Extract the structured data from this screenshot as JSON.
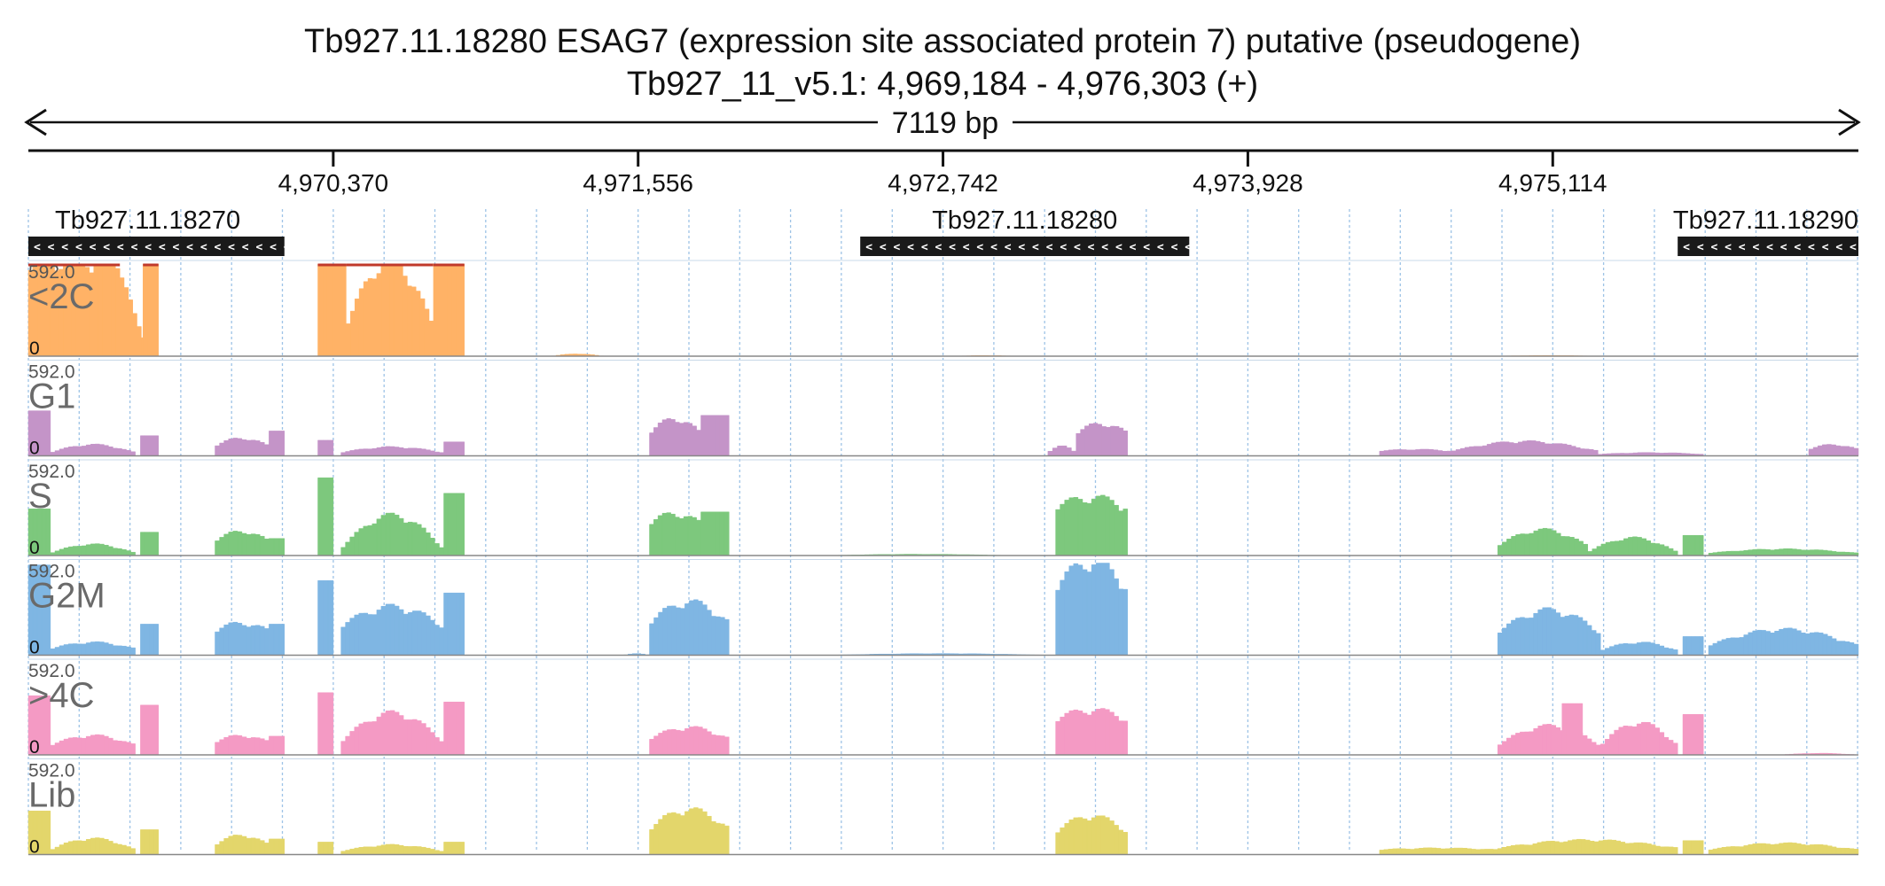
{
  "header": {
    "title": "Tb927.11.18280  ESAG7 (expression site associated protein 7)  putative (pseudogene)",
    "location": "Tb927_11_v5.1: 4,969,184 - 4,976,303 (+)",
    "span": "7119 bp"
  },
  "chart_data": {
    "type": "area",
    "x_range": [
      4969184,
      4976303
    ],
    "ticks": [
      {
        "pos": 4970370,
        "label": "4,970,370"
      },
      {
        "pos": 4971556,
        "label": "4,971,556"
      },
      {
        "pos": 4972742,
        "label": "4,972,742"
      },
      {
        "pos": 4973928,
        "label": "4,973,928"
      },
      {
        "pos": 4975114,
        "label": "4,975,114"
      }
    ],
    "genes": [
      {
        "name": "Tb927.11.18270",
        "start": 4969184,
        "end": 4970180,
        "strand": "-"
      },
      {
        "name": "Tb927.11.18280",
        "start": 4972420,
        "end": 4973700,
        "strand": "-"
      },
      {
        "name": "Tb927.11.18290",
        "start": 4975600,
        "end": 4976303,
        "strand": "-"
      }
    ],
    "grid": "dotted vertical every ~200 bp",
    "tracks": [
      {
        "name": "<2C",
        "color": "#ffb266",
        "max": 592.0,
        "min": 0,
        "max_label": "592.0",
        "min_label": "0",
        "clipped_color": "#c0392b",
        "segments": [
          {
            "start": 4969184,
            "end": 4969540,
            "shape": "hump",
            "base": 560,
            "peak": 592,
            "edge": 592
          },
          {
            "start": 4969540,
            "end": 4969690,
            "shape": "dip",
            "base": 20,
            "peak": 440,
            "edge": 560
          },
          {
            "start": 4969630,
            "end": 4969690,
            "shape": "flat",
            "base": 592,
            "peak": 592
          },
          {
            "start": 4970310,
            "end": 4970420,
            "shape": "flat",
            "base": 592,
            "peak": 592
          },
          {
            "start": 4970420,
            "end": 4970760,
            "shape": "hump",
            "base": 180,
            "peak": 592,
            "edge": 100
          },
          {
            "start": 4970760,
            "end": 4970880,
            "shape": "flat",
            "base": 592,
            "peak": 592
          },
          {
            "start": 4971220,
            "end": 4971420,
            "shape": "hump",
            "base": 0,
            "peak": 14
          },
          {
            "start": 4972800,
            "end": 4973020,
            "shape": "hump",
            "base": 0,
            "peak": 4
          },
          {
            "start": 4974900,
            "end": 4975300,
            "shape": "hump",
            "base": 0,
            "peak": 4
          }
        ]
      },
      {
        "name": "G1",
        "color": "#c494c8",
        "max": 592.0,
        "min": 0,
        "max_label": "592.0",
        "min_label": "0",
        "segments": [
          {
            "start": 4969184,
            "end": 4969270,
            "shape": "flat",
            "base": 290,
            "peak": 290
          },
          {
            "start": 4969270,
            "end": 4969600,
            "shape": "hump",
            "base": 20,
            "peak": 70
          },
          {
            "start": 4969620,
            "end": 4969690,
            "shape": "flat",
            "base": 130,
            "peak": 130
          },
          {
            "start": 4969910,
            "end": 4970120,
            "shape": "hump",
            "base": 60,
            "peak": 110
          },
          {
            "start": 4970120,
            "end": 4970180,
            "shape": "flat",
            "base": 160,
            "peak": 160
          },
          {
            "start": 4970310,
            "end": 4970370,
            "shape": "flat",
            "base": 100,
            "peak": 100
          },
          {
            "start": 4970400,
            "end": 4970800,
            "shape": "hump",
            "base": 20,
            "peak": 55
          },
          {
            "start": 4970800,
            "end": 4970880,
            "shape": "flat",
            "base": 90,
            "peak": 90
          },
          {
            "start": 4971600,
            "end": 4971800,
            "shape": "hump",
            "base": 140,
            "peak": 230
          },
          {
            "start": 4971800,
            "end": 4971910,
            "shape": "flat",
            "base": 260,
            "peak": 260
          },
          {
            "start": 4973150,
            "end": 4973260,
            "shape": "hump",
            "base": 20,
            "peak": 60
          },
          {
            "start": 4973260,
            "end": 4973460,
            "shape": "hump",
            "base": 140,
            "peak": 200
          },
          {
            "start": 4974440,
            "end": 4974720,
            "shape": "hump",
            "base": 30,
            "peak": 40
          },
          {
            "start": 4974720,
            "end": 4975290,
            "shape": "hump",
            "base": 30,
            "peak": 90
          },
          {
            "start": 4975290,
            "end": 4975700,
            "shape": "hump",
            "base": 10,
            "peak": 20
          },
          {
            "start": 4976110,
            "end": 4976303,
            "shape": "hump",
            "base": 40,
            "peak": 70
          }
        ]
      },
      {
        "name": "S",
        "color": "#7dc87d",
        "max": 592.0,
        "min": 0,
        "max_label": "592.0",
        "min_label": "0",
        "segments": [
          {
            "start": 4969184,
            "end": 4969270,
            "shape": "flat",
            "base": 300,
            "peak": 300
          },
          {
            "start": 4969270,
            "end": 4969600,
            "shape": "hump",
            "base": 15,
            "peak": 70
          },
          {
            "start": 4969620,
            "end": 4969690,
            "shape": "flat",
            "base": 150,
            "peak": 150
          },
          {
            "start": 4969910,
            "end": 4970120,
            "shape": "hump",
            "base": 90,
            "peak": 150
          },
          {
            "start": 4970120,
            "end": 4970180,
            "shape": "flat",
            "base": 110,
            "peak": 110
          },
          {
            "start": 4970310,
            "end": 4970370,
            "shape": "flat",
            "base": 500,
            "peak": 500
          },
          {
            "start": 4970400,
            "end": 4970800,
            "shape": "hump",
            "base": 40,
            "peak": 250
          },
          {
            "start": 4970800,
            "end": 4970880,
            "shape": "flat",
            "base": 400,
            "peak": 400
          },
          {
            "start": 4971600,
            "end": 4971800,
            "shape": "hump",
            "base": 200,
            "peak": 260
          },
          {
            "start": 4971800,
            "end": 4971910,
            "shape": "flat",
            "base": 280,
            "peak": 280
          },
          {
            "start": 4973180,
            "end": 4973460,
            "shape": "hump",
            "base": 300,
            "peak": 360
          },
          {
            "start": 4972300,
            "end": 4973000,
            "shape": "hump",
            "base": 0,
            "peak": 8
          },
          {
            "start": 4974900,
            "end": 4975250,
            "shape": "hump",
            "base": 60,
            "peak": 160
          },
          {
            "start": 4975250,
            "end": 4975600,
            "shape": "hump",
            "base": 20,
            "peak": 110
          },
          {
            "start": 4975620,
            "end": 4975700,
            "shape": "flat",
            "base": 130,
            "peak": 130
          },
          {
            "start": 4975720,
            "end": 4976303,
            "shape": "hump",
            "base": 15,
            "peak": 40
          }
        ]
      },
      {
        "name": "G2M",
        "color": "#7fb6e3",
        "max": 592.0,
        "min": 0,
        "max_label": "592.0",
        "min_label": "0",
        "segments": [
          {
            "start": 4969184,
            "end": 4969270,
            "shape": "flat",
            "base": 580,
            "peak": 580
          },
          {
            "start": 4969270,
            "end": 4969600,
            "shape": "hump",
            "base": 40,
            "peak": 80
          },
          {
            "start": 4969620,
            "end": 4969690,
            "shape": "flat",
            "base": 200,
            "peak": 200
          },
          {
            "start": 4969910,
            "end": 4970120,
            "shape": "hump",
            "base": 150,
            "peak": 200
          },
          {
            "start": 4970120,
            "end": 4970180,
            "shape": "flat",
            "base": 200,
            "peak": 200
          },
          {
            "start": 4970310,
            "end": 4970370,
            "shape": "flat",
            "base": 480,
            "peak": 480
          },
          {
            "start": 4970400,
            "end": 4970800,
            "shape": "hump",
            "base": 180,
            "peak": 300
          },
          {
            "start": 4970800,
            "end": 4970880,
            "shape": "flat",
            "base": 400,
            "peak": 400
          },
          {
            "start": 4971500,
            "end": 4971600,
            "shape": "hump",
            "base": 0,
            "peak": 10
          },
          {
            "start": 4971600,
            "end": 4971910,
            "shape": "hump",
            "base": 200,
            "peak": 330
          },
          {
            "start": 4972300,
            "end": 4973150,
            "shape": "hump",
            "base": 0,
            "peak": 10
          },
          {
            "start": 4973180,
            "end": 4973460,
            "shape": "hump",
            "base": 420,
            "peak": 580
          },
          {
            "start": 4974900,
            "end": 4975300,
            "shape": "hump",
            "base": 140,
            "peak": 280
          },
          {
            "start": 4975300,
            "end": 4975600,
            "shape": "hump",
            "base": 30,
            "peak": 80
          },
          {
            "start": 4975620,
            "end": 4975700,
            "shape": "flat",
            "base": 120,
            "peak": 120
          },
          {
            "start": 4975720,
            "end": 4976303,
            "shape": "hump",
            "base": 60,
            "peak": 160
          }
        ]
      },
      {
        "name": ">4C",
        "color": "#f49ac4",
        "max": 592.0,
        "min": 0,
        "max_label": "592.0",
        "min_label": "0",
        "segments": [
          {
            "start": 4969184,
            "end": 4969270,
            "shape": "flat",
            "base": 380,
            "peak": 380
          },
          {
            "start": 4969270,
            "end": 4969600,
            "shape": "hump",
            "base": 60,
            "peak": 120
          },
          {
            "start": 4969620,
            "end": 4969690,
            "shape": "flat",
            "base": 320,
            "peak": 320
          },
          {
            "start": 4969910,
            "end": 4970120,
            "shape": "hump",
            "base": 80,
            "peak": 120
          },
          {
            "start": 4970120,
            "end": 4970180,
            "shape": "flat",
            "base": 120,
            "peak": 120
          },
          {
            "start": 4970310,
            "end": 4970370,
            "shape": "flat",
            "base": 400,
            "peak": 400
          },
          {
            "start": 4970400,
            "end": 4970800,
            "shape": "hump",
            "base": 80,
            "peak": 260
          },
          {
            "start": 4970800,
            "end": 4970880,
            "shape": "flat",
            "base": 340,
            "peak": 340
          },
          {
            "start": 4971600,
            "end": 4971910,
            "shape": "hump",
            "base": 100,
            "peak": 170
          },
          {
            "start": 4973180,
            "end": 4973460,
            "shape": "hump",
            "base": 220,
            "peak": 280
          },
          {
            "start": 4974900,
            "end": 4975300,
            "shape": "hump",
            "base": 60,
            "peak": 180
          },
          {
            "start": 4975150,
            "end": 4975230,
            "shape": "flat",
            "base": 330,
            "peak": 330
          },
          {
            "start": 4975300,
            "end": 4975600,
            "shape": "hump",
            "base": 60,
            "peak": 200
          },
          {
            "start": 4975620,
            "end": 4975700,
            "shape": "flat",
            "base": 260,
            "peak": 260
          },
          {
            "start": 4976000,
            "end": 4976303,
            "shape": "hump",
            "base": 0,
            "peak": 10
          }
        ]
      },
      {
        "name": "Lib",
        "color": "#e3d66b",
        "max": 592.0,
        "min": 0,
        "max_label": "592.0",
        "min_label": "0",
        "segments": [
          {
            "start": 4969184,
            "end": 4969270,
            "shape": "flat",
            "base": 280,
            "peak": 280
          },
          {
            "start": 4969270,
            "end": 4969600,
            "shape": "hump",
            "base": 30,
            "peak": 100
          },
          {
            "start": 4969620,
            "end": 4969690,
            "shape": "flat",
            "base": 160,
            "peak": 160
          },
          {
            "start": 4969910,
            "end": 4970120,
            "shape": "hump",
            "base": 60,
            "peak": 120
          },
          {
            "start": 4970120,
            "end": 4970180,
            "shape": "flat",
            "base": 100,
            "peak": 100
          },
          {
            "start": 4970310,
            "end": 4970370,
            "shape": "flat",
            "base": 80,
            "peak": 80
          },
          {
            "start": 4970400,
            "end": 4970800,
            "shape": "hump",
            "base": 20,
            "peak": 60
          },
          {
            "start": 4970800,
            "end": 4970880,
            "shape": "flat",
            "base": 80,
            "peak": 80
          },
          {
            "start": 4971600,
            "end": 4971910,
            "shape": "hump",
            "base": 160,
            "peak": 280
          },
          {
            "start": 4973180,
            "end": 4973460,
            "shape": "hump",
            "base": 140,
            "peak": 240
          },
          {
            "start": 4974440,
            "end": 4974900,
            "shape": "hump",
            "base": 30,
            "peak": 40
          },
          {
            "start": 4974900,
            "end": 4975600,
            "shape": "hump",
            "base": 40,
            "peak": 90
          },
          {
            "start": 4975620,
            "end": 4975700,
            "shape": "flat",
            "base": 90,
            "peak": 90
          },
          {
            "start": 4975720,
            "end": 4976303,
            "shape": "hump",
            "base": 30,
            "peak": 70
          }
        ]
      }
    ]
  }
}
